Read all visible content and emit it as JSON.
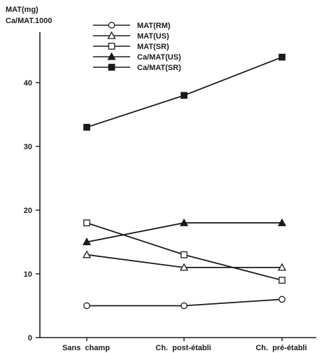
{
  "chart_data": {
    "type": "line",
    "ylabel_lines": [
      "MAT(mg)",
      "Ca/MAT.1000"
    ],
    "categories": [
      "Sans  champ",
      "Ch.  post-établi",
      "Ch.  pré-établi"
    ],
    "y_ticks": [
      0,
      10,
      20,
      30,
      40
    ],
    "ylim": [
      0,
      50
    ],
    "grid": false,
    "legend_position": "top-left",
    "series": [
      {
        "name": "MAT(RM)",
        "marker": "circle-open",
        "values": [
          5,
          5,
          6
        ]
      },
      {
        "name": "MAT(US)",
        "marker": "triangle-open",
        "values": [
          13,
          11,
          11
        ]
      },
      {
        "name": "MAT(SR)",
        "marker": "square-open",
        "values": [
          18,
          13,
          9
        ]
      },
      {
        "name": "Ca/MAT(US)",
        "marker": "triangle-filled",
        "values": [
          15,
          18,
          18
        ]
      },
      {
        "name": "Ca/MAT(SR)",
        "marker": "square-filled",
        "values": [
          33,
          38,
          44
        ]
      }
    ],
    "line_color": "#1a1a1a"
  }
}
